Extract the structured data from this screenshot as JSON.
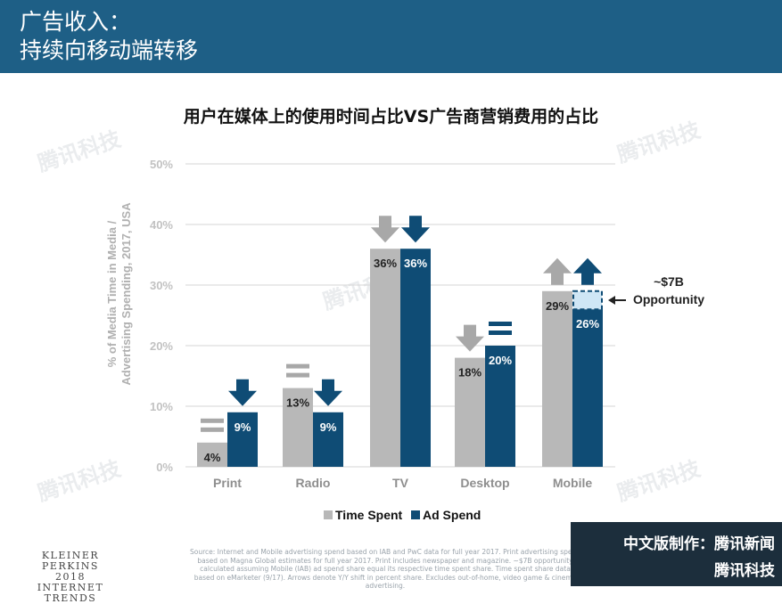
{
  "header": {
    "title_line1": "广告收入：",
    "title_line2": "持续向移动端转移"
  },
  "footer": {
    "brand_lines": [
      "KLEINER PERKINS",
      "2018",
      "INTERNET TRENDS"
    ],
    "source": "Source: Internet and Mobile advertising spend based on IAB and PwC data for full year 2017. Print advertising spend based on Magna Global estimates for full year 2017. Print includes newspaper and magazine. ~$7B opportunity calculated assuming Mobile (IAB) ad spend share equal its respective time spent share. Time spent share data based on eMarketer (9/17). Arrows denote Y/Y shift in percent share. Excludes out-of-home, video game & cinema advertising.",
    "credit_line1": "中文版制作：",
    "credit_brand1": "腾讯新闻",
    "credit_brand2": "腾讯科技",
    "watermark": "腾讯科技"
  },
  "chart_data": {
    "type": "bar",
    "title": "用户在媒体上的使用时间占比VS广告商营销费用的占比",
    "ylabel": "% of Media Time in Media / Advertising Spending, 2017, USA",
    "ylim": [
      0,
      50
    ],
    "yticks": [
      "0%",
      "10%",
      "20%",
      "30%",
      "40%",
      "50%"
    ],
    "categories": [
      "Print",
      "Radio",
      "TV",
      "Desktop",
      "Mobile"
    ],
    "series": [
      {
        "name": "Time Spent",
        "color": "#b8b8b8",
        "values": [
          4,
          13,
          36,
          18,
          29
        ],
        "labels": [
          "4%",
          "13%",
          "36%",
          "18%",
          "29%"
        ]
      },
      {
        "name": "Ad Spend",
        "color": "#0f4c75",
        "values": [
          9,
          9,
          36,
          20,
          26
        ],
        "labels": [
          "9%",
          "9%",
          "36%",
          "20%",
          "26%"
        ]
      }
    ],
    "trend_arrows": [
      {
        "category": "Print",
        "time_spent": "equal",
        "ad_spend": "down"
      },
      {
        "category": "Radio",
        "time_spent": "equal",
        "ad_spend": "down"
      },
      {
        "category": "TV",
        "time_spent": "down",
        "ad_spend": "down"
      },
      {
        "category": "Desktop",
        "time_spent": "down",
        "ad_spend": "equal"
      },
      {
        "category": "Mobile",
        "time_spent": "up",
        "ad_spend": "up"
      }
    ],
    "annotation": {
      "category": "Mobile",
      "from": 26,
      "to": 29,
      "label_line1": "~$7B",
      "label_line2": "Opportunity"
    },
    "grid": true,
    "legend": "bottom"
  }
}
